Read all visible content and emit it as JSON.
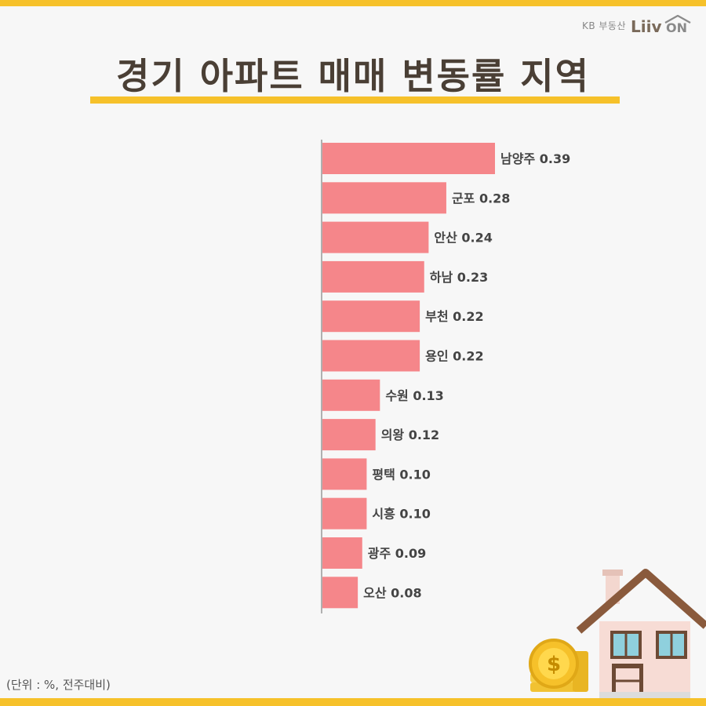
{
  "brand": {
    "kb_text": "KB 부동산",
    "logo_text": "Liiv ON"
  },
  "title": "경기 아파트 매매 변동률 지역",
  "footnote": "(단위 : %, 전주대비)",
  "colors": {
    "accent": "#f6c12a",
    "bar": "#f5868a",
    "title": "#4a3f35"
  },
  "chart_data": {
    "type": "bar",
    "orientation": "horizontal",
    "categories": [
      "남양주",
      "군포",
      "안산",
      "하남",
      "부천",
      "용인",
      "수원",
      "의왕",
      "평택",
      "시흥",
      "광주",
      "오산"
    ],
    "values": [
      0.39,
      0.28,
      0.24,
      0.23,
      0.22,
      0.22,
      0.13,
      0.12,
      0.1,
      0.1,
      0.09,
      0.08
    ],
    "value_labels": [
      "0.39",
      "0.28",
      "0.24",
      "0.23",
      "0.22",
      "0.22",
      "0.13",
      "0.12",
      "0.10",
      "0.10",
      "0.09",
      "0.08"
    ],
    "title": "경기 아파트 매매 변동률 지역",
    "xlabel": "",
    "ylabel": "",
    "xlim": [
      0,
      0.5
    ],
    "grid": false
  }
}
